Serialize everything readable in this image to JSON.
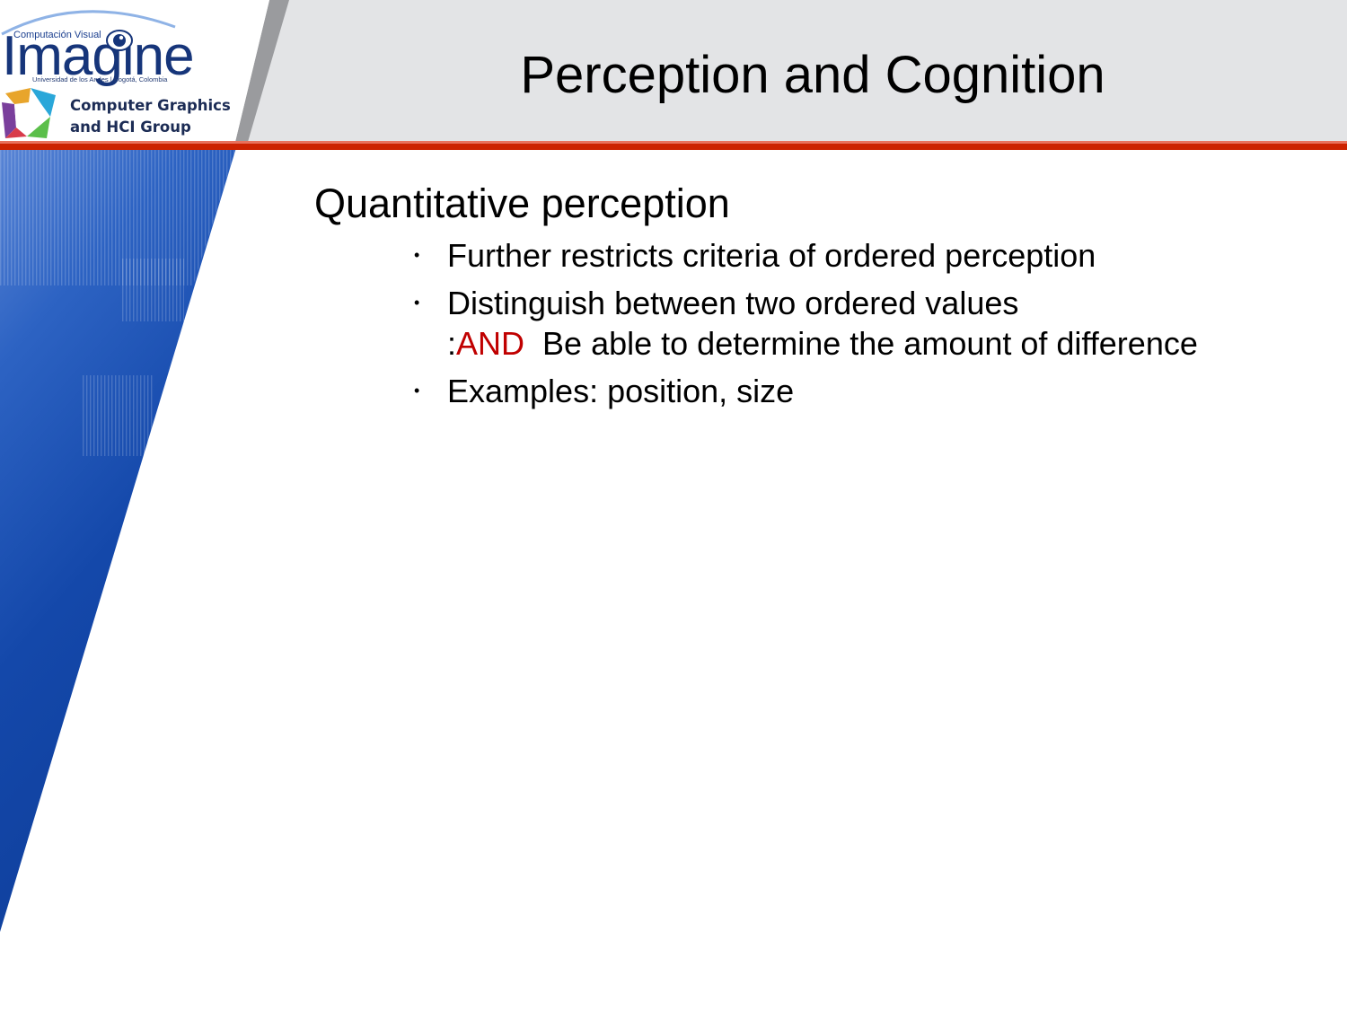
{
  "slide": {
    "title": "Perception and Cognition",
    "section_heading": "Quantitative perception",
    "bullets": [
      {
        "text": "Further restricts criteria of ordered perception"
      },
      {
        "text": "Distinguish between two ordered values",
        "continuation_prefix": ":",
        "continuation_highlight": "AND",
        "continuation_rest": "Be able to determine the amount of difference"
      },
      {
        "text": "Examples: position, size"
      }
    ],
    "bullet_symbol": "•"
  },
  "logo": {
    "top_text": "Computación Visual",
    "wordmark": "Imagine",
    "university": "Universidad de los Andes | Bogotá, Colombia",
    "group_name": "Computer Graphics\nand HCI Group"
  },
  "colors": {
    "header_gray": "#e3e4e6",
    "accent_red": "#cc2200",
    "sidebar_blue": "#1445a5",
    "highlight_red": "#c00000"
  }
}
